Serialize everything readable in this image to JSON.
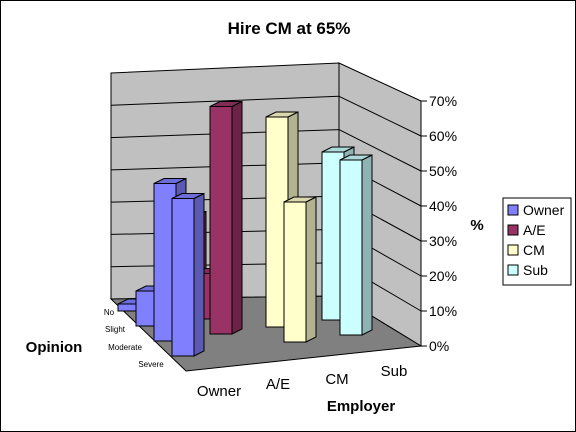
{
  "chart_data": {
    "type": "bar",
    "subtype": "3d-clustered-column",
    "title": "Hire CM at  65%",
    "employer_axis_label": "Employer",
    "opinion_axis_label": "Opinion",
    "value_axis_label": "%",
    "employers": [
      "Owner",
      "A/E",
      "CM",
      "Sub"
    ],
    "opinions": [
      "No",
      "Slight",
      "Moderate",
      "Severe"
    ],
    "value_ticks": [
      "0%",
      "10%",
      "20%",
      "30%",
      "40%",
      "50%",
      "60%",
      "70%"
    ],
    "ylim": [
      0,
      70
    ],
    "grid": true,
    "legend_position": "right",
    "series": [
      {
        "name": "Owner",
        "color": "#8080ff",
        "values": [
          2,
          10,
          45,
          45
        ]
      },
      {
        "name": "A/E",
        "color": "#993366",
        "values": [
          25,
          13,
          65,
          0
        ]
      },
      {
        "name": "CM",
        "color": "#ffffcc",
        "values": [
          0,
          0,
          60,
          40
        ]
      },
      {
        "name": "Sub",
        "color": "#ccffff",
        "values": [
          0,
          0,
          48,
          50
        ]
      }
    ]
  }
}
